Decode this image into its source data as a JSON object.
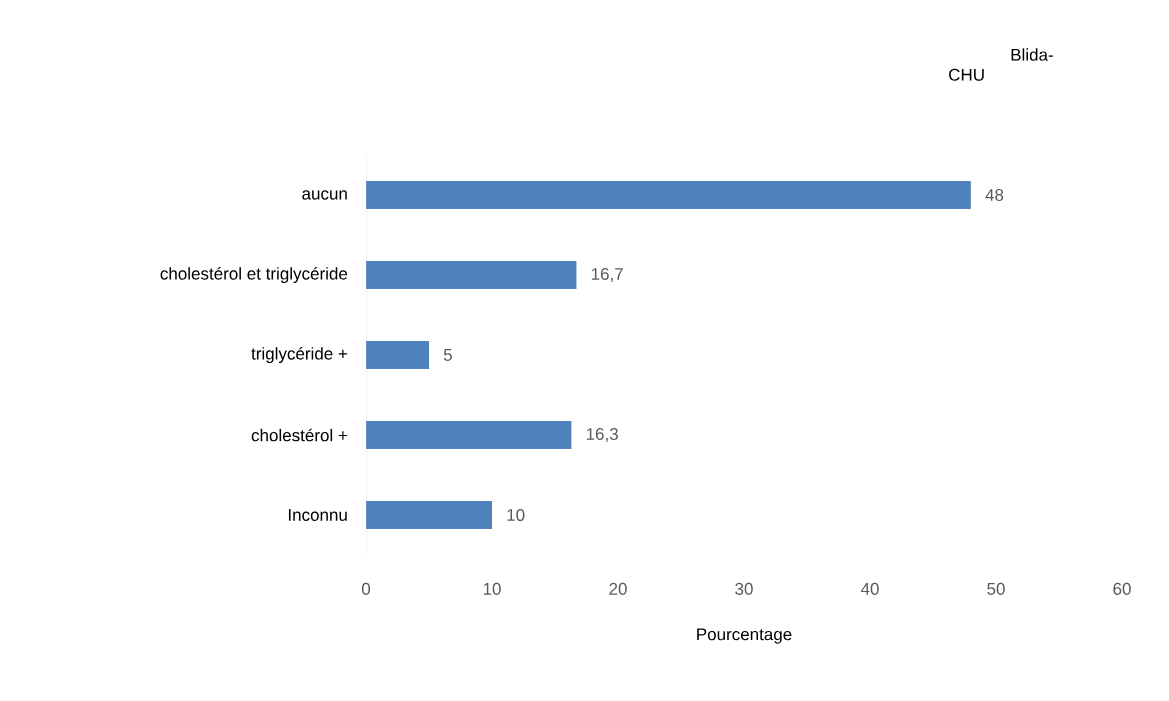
{
  "chart_data": {
    "type": "bar",
    "orientation": "horizontal",
    "xlabel": "Pourcentage",
    "categories": [
      "aucun",
      "cholestérol et triglycéride",
      "triglycéride +",
      "cholestérol +",
      "Inconnu"
    ],
    "values": [
      48,
      16.7,
      5,
      16.3,
      10
    ],
    "value_labels": [
      "48",
      "16,7",
      "5",
      "16,3",
      "10"
    ],
    "color": "#4f81bd",
    "xlim": [
      0,
      60
    ],
    "xticks": [
      0,
      10,
      20,
      30,
      40,
      50,
      60
    ],
    "grid": false,
    "annotations": [
      "Blida-",
      "CHU"
    ]
  }
}
